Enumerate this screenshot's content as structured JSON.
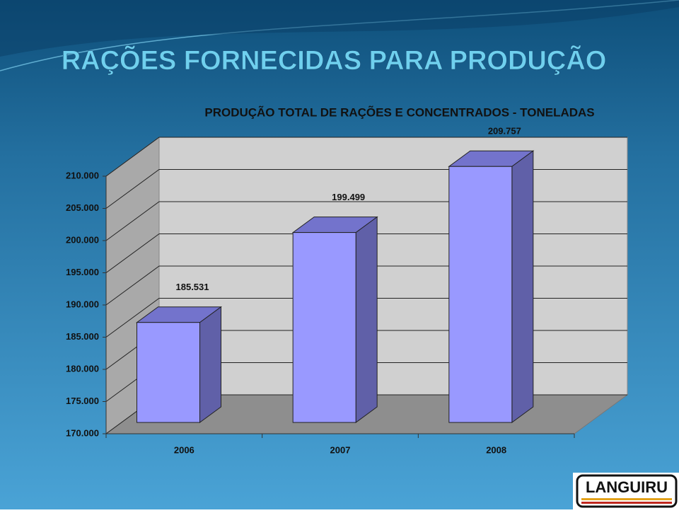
{
  "slide_title": "RAÇÕES FORNECIDAS PARA PRODUÇÃO",
  "logo": "LANGUIRU",
  "chart_data": {
    "type": "bar3d",
    "title": "PRODUÇÃO TOTAL DE RAÇÕES E CONCENTRADOS  - TONELADAS",
    "categories": [
      "2006",
      "2007",
      "2008"
    ],
    "values": [
      185531,
      199499,
      209757
    ],
    "value_labels": [
      "185.531",
      "199.499",
      "209.757"
    ],
    "color": "#9999ff",
    "ylim": [
      170000,
      210000
    ],
    "yticks": [
      {
        "value": 170000,
        "label": "170.000"
      },
      {
        "value": 175000,
        "label": "175.000"
      },
      {
        "value": 180000,
        "label": "180.000"
      },
      {
        "value": 185000,
        "label": "185.000"
      },
      {
        "value": 190000,
        "label": "190.000"
      },
      {
        "value": 195000,
        "label": "195.000"
      },
      {
        "value": 200000,
        "label": "200.000"
      },
      {
        "value": 205000,
        "label": "205.000"
      },
      {
        "value": 210000,
        "label": "210.000"
      }
    ],
    "grid": true
  }
}
